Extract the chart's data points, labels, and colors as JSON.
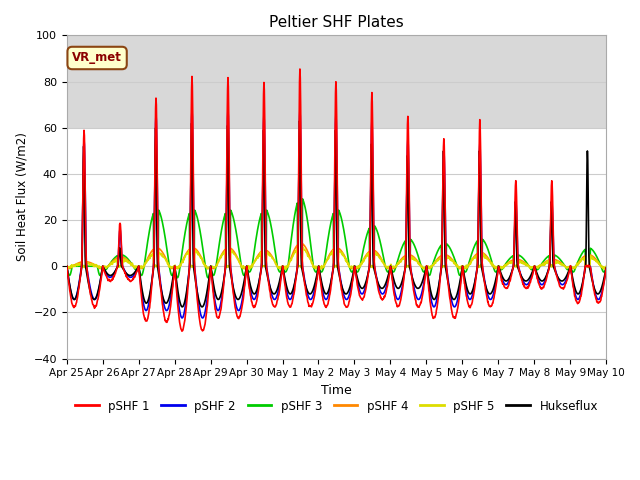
{
  "title": "Peltier SHF Plates",
  "xlabel": "Time",
  "ylabel": "Soil Heat Flux (W/m2)",
  "ylim": [
    -40,
    100
  ],
  "xlim": [
    0,
    15
  ],
  "tick_labels": [
    "Apr 25",
    "Apr 26",
    "Apr 27",
    "Apr 28",
    "Apr 29",
    "Apr 30",
    "May 1",
    "May 2",
    "May 3",
    "May 4",
    "May 5",
    "May 6",
    "May 7",
    "May 8",
    "May 9",
    "May 10"
  ],
  "tick_positions": [
    0,
    1,
    2,
    3,
    4,
    5,
    6,
    7,
    8,
    9,
    10,
    11,
    12,
    13,
    14,
    15
  ],
  "annotation_text": "VR_met",
  "shaded_band_ymin": 60,
  "shaded_band_ymax": 100,
  "line_colors": {
    "pSHF 1": "#ff0000",
    "pSHF 2": "#0000ee",
    "pSHF 3": "#00cc00",
    "pSHF 4": "#ff8800",
    "pSHF 5": "#dddd00",
    "Hukseflux": "#000000"
  },
  "yticks": [
    -40,
    -20,
    0,
    20,
    40,
    60,
    80,
    100
  ],
  "fig_facecolor": "#ffffff",
  "axes_facecolor": "#ffffff",
  "shaded_color": "#d8d8d8",
  "grid_color": "#cccccc",
  "vr_facecolor": "#ffffcc",
  "vr_edgecolor": "#8B4513",
  "vr_textcolor": "#8B0000"
}
